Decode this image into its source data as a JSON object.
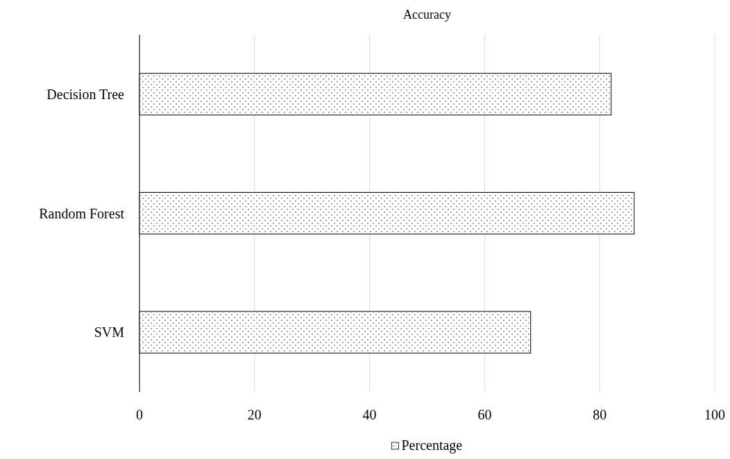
{
  "chart_data": {
    "type": "bar",
    "orientation": "horizontal",
    "title": "Accuracy",
    "categories": [
      "Decision Tree",
      "Random Forest",
      "SVM"
    ],
    "series": [
      {
        "name": "Percentage",
        "color": "#ffffff",
        "values": [
          82,
          86,
          68
        ]
      }
    ],
    "xlim": [
      0,
      100
    ],
    "xticks": [
      0,
      20,
      40,
      60,
      80,
      100
    ],
    "grid": "x",
    "legend": "bottom"
  }
}
